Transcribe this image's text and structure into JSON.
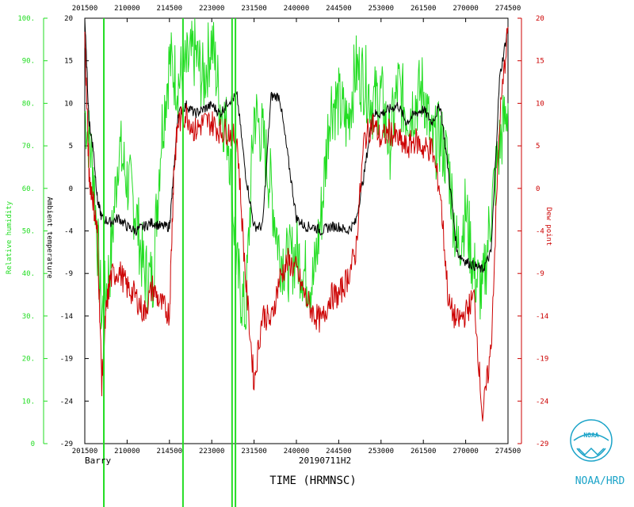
{
  "chart_data": {
    "type": "line",
    "title": "",
    "xlabel": "TIME (HRMNSC)",
    "storm_name": "Barry",
    "flight_id": "20190711H2",
    "credit": "NOAA/HRD",
    "logo_text": "NOAA",
    "x_ticks": [
      "201500",
      "210000",
      "214500",
      "223000",
      "231500",
      "240000",
      "244500",
      "253000",
      "261500",
      "270000",
      "274500"
    ],
    "x_ticks_top": [
      "201500",
      "210000",
      "214500",
      "223000",
      "231500",
      "240000",
      "244500",
      "253000",
      "261500",
      "270000",
      "274500"
    ],
    "y_left_outer": {
      "label": "Relative humidity",
      "ticks": [
        "0",
        "10.",
        "20.",
        "30.",
        "40.",
        "50.",
        "60.",
        "70.",
        "80.",
        "90.",
        "100."
      ],
      "range": [
        0,
        100
      ],
      "color": "#22dd22"
    },
    "y_left_inner": {
      "label": "Ambient temperature",
      "ticks": [
        "-29",
        "-24",
        "-19",
        "-14",
        "-9",
        "-4",
        "0",
        "5",
        "10",
        "15",
        "20"
      ],
      "range": [
        -29,
        20
      ],
      "color": "#000000"
    },
    "y_right": {
      "label": "Dew point",
      "ticks": [
        "-29",
        "-24",
        "-19",
        "-14",
        "-9",
        "-4",
        "0",
        "5",
        "10",
        "15",
        "20"
      ],
      "range": [
        -29,
        20
      ],
      "color": "#cc0000"
    },
    "series": [
      {
        "name": "Relative humidity",
        "color": "#22dd22",
        "axis": "rh",
        "x": [
          0.0,
          0.02,
          0.04,
          0.06,
          0.08,
          0.1,
          0.12,
          0.14,
          0.16,
          0.18,
          0.2,
          0.22,
          0.24,
          0.26,
          0.28,
          0.3,
          0.32,
          0.34,
          0.36,
          0.38,
          0.4,
          0.42,
          0.44,
          0.46,
          0.48,
          0.5,
          0.52,
          0.54,
          0.56,
          0.58,
          0.6,
          0.62,
          0.64,
          0.66,
          0.68,
          0.7,
          0.72,
          0.74,
          0.76,
          0.78,
          0.8,
          0.82,
          0.84,
          0.86,
          0.88,
          0.9,
          0.92,
          0.94,
          0.96,
          0.98,
          1.0
        ],
        "values": [
          78,
          65,
          30,
          42,
          70,
          62,
          55,
          40,
          38,
          72,
          90,
          85,
          88,
          92,
          85,
          95,
          80,
          72,
          40,
          30,
          78,
          72,
          60,
          45,
          42,
          45,
          40,
          38,
          55,
          80,
          80,
          75,
          88,
          86,
          80,
          82,
          70,
          84,
          78,
          80,
          84,
          70,
          72,
          65,
          45,
          55,
          40,
          35,
          55,
          70,
          80
        ]
      },
      {
        "name": "Ambient temperature",
        "color": "#000000",
        "axis": "temp",
        "x": [
          0.0,
          0.01,
          0.02,
          0.03,
          0.04,
          0.06,
          0.08,
          0.1,
          0.12,
          0.14,
          0.16,
          0.18,
          0.2,
          0.21,
          0.22,
          0.24,
          0.26,
          0.28,
          0.3,
          0.32,
          0.34,
          0.36,
          0.38,
          0.4,
          0.42,
          0.44,
          0.46,
          0.48,
          0.5,
          0.52,
          0.54,
          0.56,
          0.58,
          0.6,
          0.62,
          0.64,
          0.66,
          0.68,
          0.7,
          0.72,
          0.74,
          0.76,
          0.78,
          0.8,
          0.82,
          0.84,
          0.86,
          0.88,
          0.9,
          0.92,
          0.94,
          0.96,
          0.98,
          1.0
        ],
        "values": [
          20,
          8,
          5,
          -1,
          -3,
          -3.5,
          -3,
          -4,
          -4.5,
          -4,
          -3.5,
          -4,
          -4,
          2,
          9,
          10,
          9,
          9.5,
          10,
          9,
          10.5,
          11,
          2,
          -4,
          -4,
          11,
          11,
          4,
          -3,
          -4,
          -4,
          -4.5,
          -4,
          -4,
          -4.5,
          -3.5,
          2,
          9,
          9,
          9.5,
          10,
          8,
          9,
          9.5,
          8,
          10,
          2,
          -7,
          -8,
          -8.5,
          -9,
          -7,
          13,
          19
        ]
      },
      {
        "name": "Dew point",
        "color": "#cc0000",
        "axis": "temp",
        "x": [
          0.0,
          0.01,
          0.02,
          0.03,
          0.04,
          0.05,
          0.06,
          0.08,
          0.1,
          0.12,
          0.14,
          0.16,
          0.18,
          0.2,
          0.21,
          0.22,
          0.24,
          0.26,
          0.28,
          0.3,
          0.32,
          0.34,
          0.36,
          0.38,
          0.4,
          0.42,
          0.44,
          0.46,
          0.48,
          0.5,
          0.52,
          0.54,
          0.56,
          0.58,
          0.6,
          0.62,
          0.64,
          0.66,
          0.68,
          0.7,
          0.72,
          0.74,
          0.76,
          0.78,
          0.8,
          0.82,
          0.84,
          0.86,
          0.88,
          0.9,
          0.92,
          0.94,
          0.96,
          0.98,
          1.0
        ],
        "values": [
          18,
          2,
          -1,
          -5,
          -22,
          -14,
          -10,
          -9,
          -11,
          -12,
          -14,
          -11,
          -13,
          -14,
          2,
          8,
          9,
          7,
          8,
          8,
          7,
          7,
          6,
          -10,
          -22,
          -14,
          -15,
          -10,
          -8,
          -9,
          -12,
          -14,
          -15,
          -12,
          -12,
          -10,
          -7,
          6,
          8,
          6,
          7,
          6,
          5,
          6,
          5,
          5,
          0,
          -13,
          -15,
          -14,
          -12,
          -26,
          -18,
          8,
          19
        ]
      }
    ]
  }
}
